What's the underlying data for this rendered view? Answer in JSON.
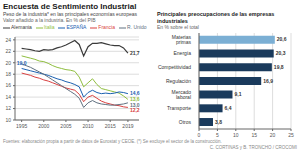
{
  "chart_data": [
    {
      "type": "line",
      "title": "Encuesta de Sentimiento Industrial",
      "subtitle": "Peso de la industria* en las principales economías europeas",
      "ylabel": "Valor añadido a la industria. En % del PIB",
      "x": [
        1995,
        1996,
        1997,
        1998,
        1999,
        2000,
        2001,
        2002,
        2003,
        2004,
        2005,
        2006,
        2007,
        2008,
        2009,
        2010,
        2011,
        2012,
        2013,
        2014,
        2015,
        2016,
        2017,
        2018,
        2019
      ],
      "series": [
        {
          "name": "Alemania",
          "color": "#3a3a3a",
          "values": [
            22.5,
            22.4,
            22.3,
            22.1,
            22.0,
            22.3,
            22.2,
            22.3,
            22.6,
            22.8,
            23.1,
            23.5,
            23.9,
            23.2,
            21.2,
            22.8,
            23.4,
            23.4,
            23.5,
            23.3,
            23.1,
            23.0,
            23.0,
            22.6,
            21.7
          ]
        },
        {
          "name": "Italia",
          "color": "#8fbe3f",
          "values": [
            21.2,
            21.0,
            20.8,
            20.6,
            20.3,
            20.2,
            19.9,
            19.5,
            19.2,
            19.0,
            18.8,
            18.7,
            18.5,
            17.5,
            15.8,
            16.5,
            17.2,
            16.2,
            15.5,
            15.3,
            15.1,
            14.9,
            14.7,
            14.2,
            13.6
          ]
        },
        {
          "name": "ESPAÑA",
          "color": "#1a60b0",
          "values": [
            19.0,
            18.8,
            18.6,
            18.4,
            18.2,
            18.0,
            17.8,
            17.5,
            17.2,
            17.0,
            16.7,
            16.5,
            16.2,
            15.8,
            14.0,
            14.8,
            15.2,
            14.8,
            14.6,
            14.7,
            14.6,
            14.7,
            14.9,
            14.8,
            14.6
          ]
        },
        {
          "name": "Francia",
          "color": "#d94040",
          "values": [
            18.2,
            18.0,
            17.8,
            17.5,
            17.3,
            17.0,
            16.8,
            16.5,
            16.2,
            15.9,
            15.6,
            15.4,
            15.2,
            14.5,
            13.2,
            14.0,
            14.3,
            13.8,
            13.3,
            13.0,
            12.8,
            12.6,
            12.5,
            12.3,
            12.2
          ]
        },
        {
          "name": "R. Unido",
          "color": "#607080",
          "values": [
            19.8,
            19.5,
            19.2,
            18.8,
            18.4,
            18.0,
            17.5,
            17.0,
            16.5,
            16.0,
            15.5,
            15.0,
            14.5,
            13.8,
            12.2,
            13.0,
            13.4,
            13.0,
            12.8,
            12.7,
            12.6,
            12.6,
            12.7,
            12.8,
            13.0
          ]
        }
      ],
      "xlim": [
        1993.5,
        2021.5
      ],
      "xticks": [
        1995,
        2000,
        2005,
        2010,
        2015,
        2019
      ],
      "ylim": [
        10,
        24.5
      ],
      "yticks": [
        10,
        12,
        14,
        16,
        18,
        20,
        22,
        24
      ],
      "grid": "y",
      "legend": "top",
      "annotations": [
        {
          "text": "21,7",
          "x": 2019,
          "y": 21.7,
          "color": "#3a3a3a"
        },
        {
          "text": "13,6",
          "x": 2019,
          "y": 13.6,
          "color": "#8fbe3f"
        },
        {
          "text": "14,6",
          "x": 2019,
          "y": 14.6,
          "color": "#1a60b0"
        },
        {
          "text": "12,2",
          "x": 2019,
          "y": 12.2,
          "color": "#d94040"
        },
        {
          "text": "13,0",
          "x": 2019,
          "y": 13.0,
          "color": "#607080"
        },
        {
          "text": "19,0",
          "x": 1995,
          "y": 19.0,
          "color": "#1a60b0"
        }
      ]
    },
    {
      "type": "bar",
      "orientation": "horizontal",
      "title": "Principales preocupaciones de las empresas industriales",
      "subtitle": "En % sobre el total",
      "categories": [
        "Materias primas",
        "Energía",
        "Competitividad",
        "Regulación",
        "Mercado laboral",
        "Transporte",
        "Otros"
      ],
      "values": [
        20.6,
        20.3,
        19.8,
        16.9,
        9.1,
        6.4,
        3.8
      ],
      "value_labels": [
        "20,6",
        "20,3",
        "19,8",
        "16,9",
        "9,1",
        "6,4",
        "3,8"
      ],
      "colors": [
        "#7bafd4",
        "#1a3a5c",
        "#1a3a5c",
        "#1a3a5c",
        "#1a3a5c",
        "#1a3a5c",
        "#1a3a5c"
      ],
      "xlim": [
        0,
        25
      ],
      "xticks": [
        0,
        5,
        10,
        15,
        20,
        25
      ],
      "grid": "x",
      "data_labels": true
    }
  ],
  "source": "Fuentes: elaboración propia a partir de datos de Eurostat y CEOE. (*) Se excluye el sector de la construcción.",
  "credit": "C. CORTINAS y B. TRONCHO / CROCOMI"
}
